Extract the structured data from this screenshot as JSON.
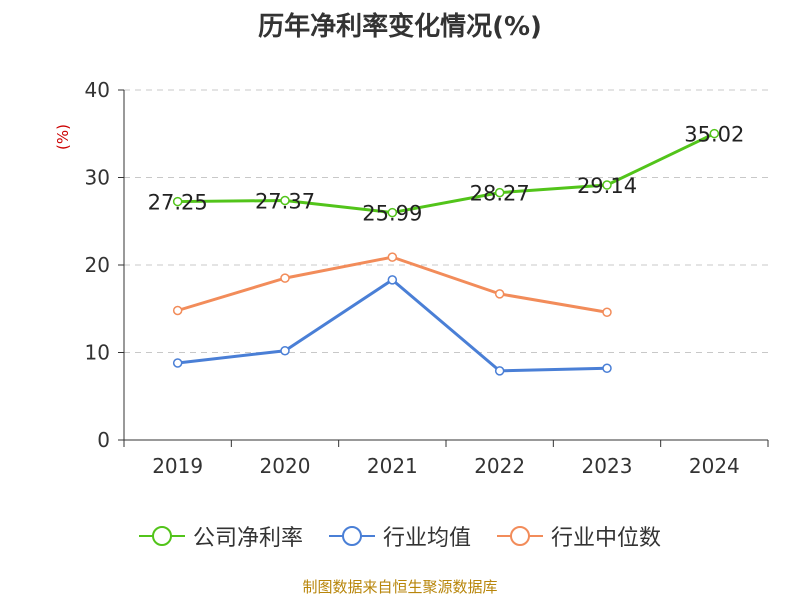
{
  "chart_data": {
    "type": "line",
    "title": "历年净利率变化情况(%)",
    "unit_label": "(%)",
    "categories": [
      "2019",
      "2020",
      "2021",
      "2022",
      "2023",
      "2024"
    ],
    "ylim": [
      0,
      40
    ],
    "yticks": [
      0,
      10,
      20,
      30,
      40
    ],
    "grid": true,
    "legend_position": "bottom",
    "series": [
      {
        "name": "公司净利率",
        "color": "#52c41a",
        "labeled": true,
        "values": [
          27.25,
          27.37,
          25.99,
          28.27,
          29.14,
          35.02
        ]
      },
      {
        "name": "行业均值",
        "color": "#4a7fd6",
        "labeled": false,
        "values": [
          8.8,
          10.2,
          18.3,
          7.9,
          8.2,
          null
        ]
      },
      {
        "name": "行业中位数",
        "color": "#f28c5a",
        "labeled": false,
        "values": [
          14.8,
          18.5,
          20.9,
          16.7,
          14.6,
          null
        ]
      }
    ],
    "data_labels": [
      "27.25",
      "27.37",
      "25.99",
      "28.27",
      "29.14",
      "35.02"
    ]
  },
  "footer": {
    "source": "制图数据来自恒生聚源数据库"
  }
}
